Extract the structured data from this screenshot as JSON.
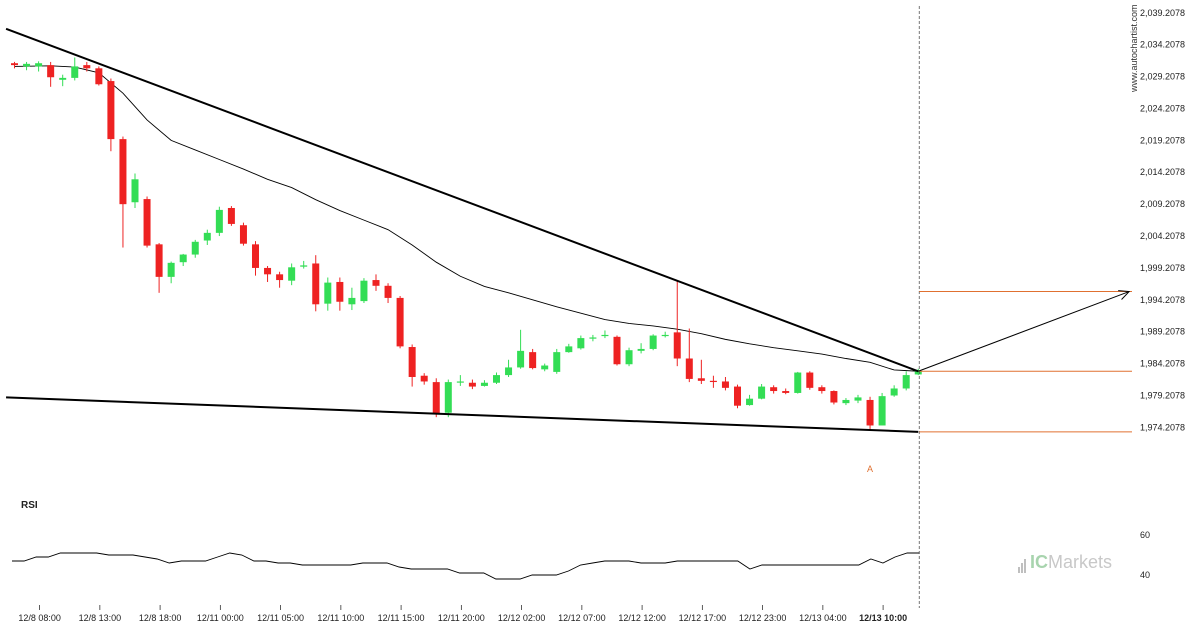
{
  "watermark": "www.autochartist.com",
  "brand": {
    "prefix": "IC",
    "suffix": "Markets"
  },
  "colors": {
    "bull": "#33dd55",
    "bear": "#ee2222",
    "trend": "#000000",
    "level": "#e07030",
    "ma": "#000000"
  },
  "rsi": {
    "label": "RSI",
    "ticks": [
      "60",
      "40"
    ]
  },
  "chart_data": {
    "type": "candlestick",
    "y_ticks": [
      "2,039.2078",
      "2,034.2078",
      "2,029.2078",
      "2,024.2078",
      "2,019.2078",
      "2,014.2078",
      "2,009.2078",
      "2,004.2078",
      "1,999.2078",
      "1,994.2078",
      "1,989.2078",
      "1,984.2078",
      "1,979.2078",
      "1,974.2078"
    ],
    "y_tick_values": [
      2039.2078,
      2034.2078,
      2029.2078,
      2024.2078,
      2019.2078,
      2014.2078,
      2009.2078,
      2004.2078,
      1999.2078,
      1994.2078,
      1989.2078,
      1984.2078,
      1979.2078,
      1974.2078
    ],
    "ylim": [
      1969.4,
      2039.8
    ],
    "x_ticks": [
      "12/8 08:00",
      "12/8 13:00",
      "12/8 18:00",
      "12/11 00:00",
      "12/11 05:00",
      "12/11 10:00",
      "12/11 15:00",
      "12/11 20:00",
      "12/12 02:00",
      "12/12 07:00",
      "12/12 12:00",
      "12/12 17:00",
      "12/12 23:00",
      "12/13 04:00",
      "12/13 10:00"
    ],
    "x_tick_bar_index": [
      2,
      7,
      12,
      17,
      22,
      27,
      32,
      37,
      42,
      47,
      52,
      57,
      62,
      67,
      72
    ],
    "candles": [
      [
        2031.3,
        2031.0,
        2031.5,
        2030.5
      ],
      [
        2030.8,
        2031.2,
        2031.5,
        2030.2
      ],
      [
        2030.8,
        2031.3,
        2031.6,
        2030.0
      ],
      [
        2031.0,
        2029.1,
        2031.5,
        2027.6
      ],
      [
        2028.7,
        2029.0,
        2029.5,
        2027.7
      ],
      [
        2029.0,
        2030.8,
        2032.2,
        2028.6
      ],
      [
        2031.0,
        2030.5,
        2031.5,
        2030.0
      ],
      [
        2030.5,
        2028.0,
        2030.8,
        2027.8
      ],
      [
        2028.5,
        2019.4,
        2028.9,
        2017.5
      ],
      [
        2019.4,
        2009.2,
        2019.8,
        2002.4
      ],
      [
        2009.5,
        2013.1,
        2014.0,
        2008.6
      ],
      [
        2010.0,
        2002.7,
        2010.4,
        2002.4
      ],
      [
        2002.9,
        1997.8,
        2003.1,
        1995.3
      ],
      [
        1997.8,
        2000.0,
        2000.2,
        1996.8
      ],
      [
        2000.1,
        2001.3,
        2001.4,
        1999.5
      ],
      [
        2001.3,
        2003.3,
        2003.6,
        2000.8
      ],
      [
        2003.5,
        2004.7,
        2005.2,
        2002.8
      ],
      [
        2004.7,
        2008.3,
        2008.8,
        2004.2
      ],
      [
        2008.6,
        2006.1,
        2008.9,
        2005.8
      ],
      [
        2005.9,
        2003.0,
        2006.3,
        2002.7
      ],
      [
        2002.9,
        1999.2,
        2003.4,
        1998.0
      ],
      [
        1999.2,
        1998.2,
        1999.5,
        1997.0
      ],
      [
        1998.2,
        1997.3,
        1998.6,
        1996.1
      ],
      [
        1997.2,
        1999.3,
        1999.9,
        1996.5
      ],
      [
        1999.4,
        1999.6,
        2000.3,
        1999.1
      ],
      [
        1999.9,
        1993.5,
        2001.2,
        1992.4
      ],
      [
        1993.6,
        1996.9,
        1997.7,
        1992.5
      ],
      [
        1997.0,
        1993.9,
        1997.7,
        1992.5
      ],
      [
        1993.5,
        1994.5,
        1996.1,
        1992.6
      ],
      [
        1994.0,
        1997.2,
        1997.6,
        1993.7
      ],
      [
        1997.3,
        1996.4,
        1998.2,
        1995.6
      ],
      [
        1996.4,
        1994.5,
        1996.8,
        1993.7
      ],
      [
        1994.5,
        1986.9,
        1994.8,
        1986.6
      ],
      [
        1986.8,
        1982.1,
        1987.2,
        1980.6
      ],
      [
        1982.3,
        1981.4,
        1982.7,
        1980.9
      ],
      [
        1981.3,
        1976.4,
        1981.9,
        1975.8
      ],
      [
        1976.5,
        1981.3,
        1981.7,
        1975.8
      ],
      [
        1981.4,
        1981.4,
        1982.4,
        1980.7
      ],
      [
        1981.2,
        1980.6,
        1981.7,
        1980.2
      ],
      [
        1980.7,
        1981.2,
        1981.6,
        1980.6
      ],
      [
        1981.2,
        1982.4,
        1982.8,
        1981.0
      ],
      [
        1982.4,
        1983.6,
        1984.8,
        1982.1
      ],
      [
        1983.6,
        1986.2,
        1989.5,
        1983.4
      ],
      [
        1986.0,
        1983.5,
        1986.5,
        1983.3
      ],
      [
        1983.3,
        1983.9,
        1984.2,
        1983.0
      ],
      [
        1982.9,
        1986.0,
        1986.5,
        1982.6
      ],
      [
        1986.0,
        1986.9,
        1987.3,
        1985.9
      ],
      [
        1986.6,
        1988.2,
        1988.6,
        1986.4
      ],
      [
        1988.2,
        1988.3,
        1988.7,
        1987.7
      ],
      [
        1988.6,
        1988.7,
        1989.4,
        1988.2
      ],
      [
        1988.4,
        1984.1,
        1988.6,
        1983.9
      ],
      [
        1984.1,
        1986.3,
        1986.7,
        1983.8
      ],
      [
        1986.2,
        1986.5,
        1987.4,
        1985.8
      ],
      [
        1986.5,
        1988.6,
        1988.8,
        1986.3
      ],
      [
        1988.6,
        1988.7,
        1989.2,
        1988.3
      ],
      [
        1989.1,
        1985.0,
        1997.2,
        1983.8
      ],
      [
        1985.0,
        1981.8,
        1989.7,
        1981.3
      ],
      [
        1981.9,
        1981.5,
        1984.8,
        1981.0
      ],
      [
        1981.5,
        1981.4,
        1982.3,
        1980.4
      ],
      [
        1981.4,
        1980.4,
        1982.1,
        1980.0
      ],
      [
        1980.6,
        1977.6,
        1980.9,
        1977.2
      ],
      [
        1977.7,
        1978.7,
        1979.3,
        1977.6
      ],
      [
        1978.7,
        1980.6,
        1981.0,
        1978.6
      ],
      [
        1980.5,
        1979.9,
        1980.8,
        1979.5
      ],
      [
        1979.9,
        1979.6,
        1980.3,
        1979.4
      ],
      [
        1979.6,
        1982.8,
        1982.9,
        1979.5
      ],
      [
        1982.8,
        1980.4,
        1983.0,
        1980.1
      ],
      [
        1980.5,
        1979.9,
        1980.8,
        1979.5
      ],
      [
        1979.9,
        1978.1,
        1980.0,
        1977.8
      ],
      [
        1978.0,
        1978.5,
        1978.8,
        1977.7
      ],
      [
        1978.4,
        1978.9,
        1979.3,
        1978.0
      ],
      [
        1978.5,
        1974.5,
        1979.0,
        1973.7
      ],
      [
        1974.5,
        1979.1,
        1979.6,
        1974.5
      ],
      [
        1979.2,
        1980.3,
        1980.8,
        1979.0
      ],
      [
        1980.3,
        1982.4,
        1983.0,
        1980.0
      ],
      [
        1982.5,
        1983.0,
        1983.4,
        1982.4
      ]
    ],
    "moving_average": [
      [
        0,
        2030.8
      ],
      [
        3,
        2030.9
      ],
      [
        5,
        2030.7
      ],
      [
        7,
        2029.8
      ],
      [
        9,
        2026.6
      ],
      [
        11,
        2022.4
      ],
      [
        13,
        2019.2
      ],
      [
        15,
        2017.7
      ],
      [
        17,
        2016.2
      ],
      [
        19,
        2014.7
      ],
      [
        21,
        2013.1
      ],
      [
        23,
        2011.8
      ],
      [
        25,
        2009.9
      ],
      [
        27,
        2008.2
      ],
      [
        29,
        2006.7
      ],
      [
        31,
        2005.2
      ],
      [
        33,
        2002.8
      ],
      [
        35,
        2000.1
      ],
      [
        37,
        1997.9
      ],
      [
        39,
        1996.3
      ],
      [
        41,
        1995.3
      ],
      [
        43,
        1994.2
      ],
      [
        45,
        1993.1
      ],
      [
        47,
        1992.1
      ],
      [
        49,
        1991.1
      ],
      [
        51,
        1990.5
      ],
      [
        53,
        1990.1
      ],
      [
        55,
        1989.6
      ],
      [
        57,
        1988.9
      ],
      [
        59,
        1988.0
      ],
      [
        61,
        1987.3
      ],
      [
        63,
        1986.7
      ],
      [
        65,
        1986.2
      ],
      [
        67,
        1985.7
      ],
      [
        69,
        1985.0
      ],
      [
        71,
        1984.4
      ],
      [
        73,
        1983.2
      ],
      [
        75,
        1983.0
      ]
    ],
    "resistance_line": {
      "from": [
        -0.7,
        2036.7
      ],
      "to": [
        75,
        1983.0
      ]
    },
    "support_line": {
      "from": [
        -0.7,
        1978.9
      ],
      "to": [
        75,
        1973.5
      ]
    },
    "levels": [
      1983.0,
      1973.5,
      1995.5
    ],
    "projection_arrow": {
      "from": [
        75,
        1983.0
      ],
      "to": [
        92.5,
        1995.5
      ]
    },
    "marker_label": "A",
    "marker_bar_index": 71,
    "rsi_values": [
      47,
      47,
      49,
      49,
      51,
      51,
      51,
      51,
      50,
      50,
      50,
      49,
      48,
      46,
      47,
      47,
      47,
      49,
      51,
      50,
      47,
      47,
      46,
      46,
      45,
      45,
      45,
      45,
      45,
      46,
      46,
      46,
      44,
      43,
      43,
      43,
      43,
      41,
      41,
      41,
      38,
      38,
      38,
      40,
      40,
      40,
      42,
      45,
      46,
      47,
      47,
      47,
      46,
      46,
      46,
      47,
      47,
      47,
      47,
      47,
      47,
      43,
      45,
      45,
      45,
      45,
      45,
      45,
      45,
      45,
      45,
      48,
      46,
      49,
      51,
      51
    ],
    "rsi_ylim": [
      30,
      65
    ]
  }
}
